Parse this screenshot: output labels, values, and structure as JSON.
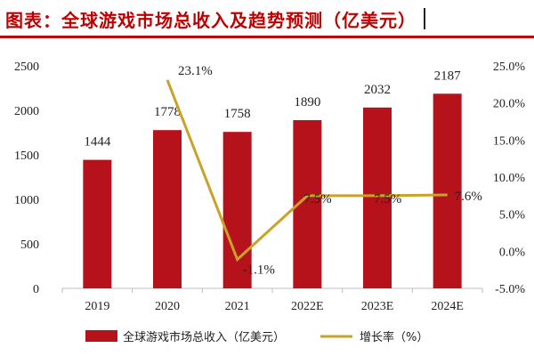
{
  "title": "图表：全球游戏市场总收入及趋势预测（亿美元）",
  "colors": {
    "bar": "#b5121b",
    "line": "#c9a227",
    "title": "#c00000"
  },
  "chart_data": {
    "type": "bar",
    "categories": [
      "2019",
      "2020",
      "2021",
      "2022E",
      "2023E",
      "2024E"
    ],
    "series": [
      {
        "name": "全球游戏市场总收入（亿美元）",
        "type": "bar",
        "axis": "left",
        "values": [
          1444,
          1778,
          1758,
          1890,
          2032,
          2187
        ],
        "labels": [
          "1444",
          "1778",
          "1758",
          "1890",
          "2032",
          "2187"
        ]
      },
      {
        "name": "增长率（%）",
        "type": "line",
        "axis": "right",
        "values": [
          null,
          23.1,
          -1.1,
          7.5,
          7.5,
          7.6
        ],
        "labels": [
          "",
          "23.1%",
          "-1.1%",
          "7.5%",
          "7.5%",
          "7.6%"
        ]
      }
    ],
    "y_left": {
      "min": 0,
      "max": 2500,
      "ticks": [
        "0",
        "500",
        "1000",
        "1500",
        "2000",
        "2500"
      ]
    },
    "y_right": {
      "min": -5,
      "max": 25,
      "ticks": [
        "-5.0%",
        "0.0%",
        "5.0%",
        "10.0%",
        "15.0%",
        "20.0%",
        "25.0%"
      ]
    },
    "grid": false,
    "legend": "bottom"
  }
}
